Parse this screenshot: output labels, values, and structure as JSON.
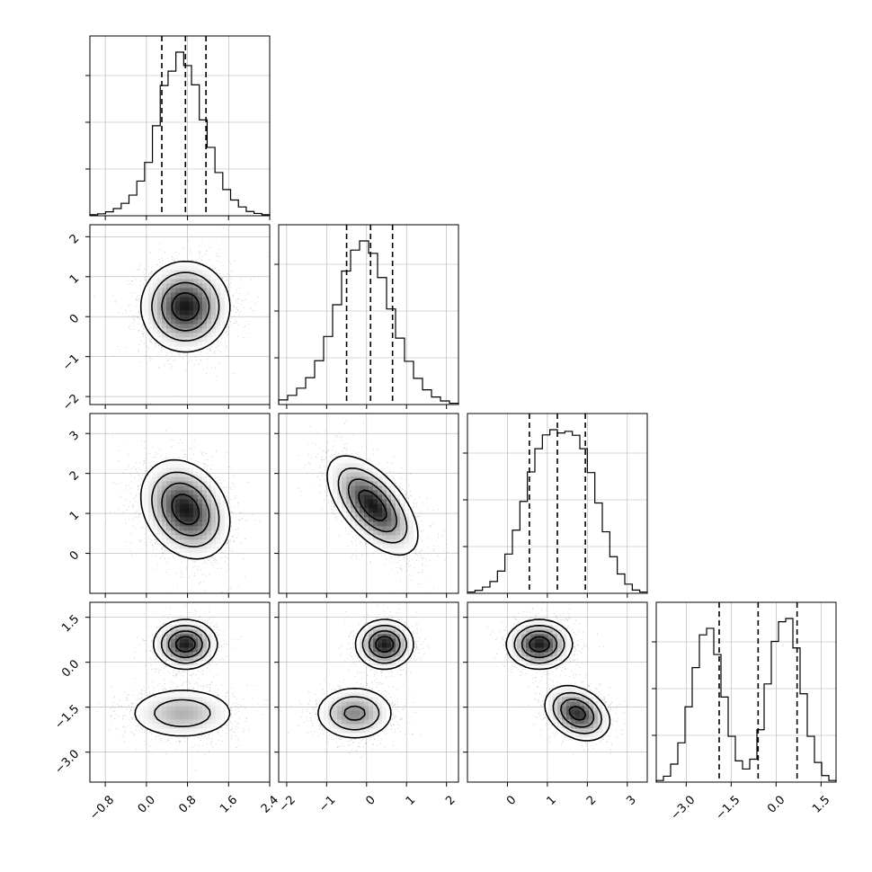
{
  "chart_data": {
    "type": "corner",
    "params": [
      {
        "index": 0,
        "range": [
          -1.1,
          2.4
        ],
        "ticks": [
          -0.8,
          0.0,
          0.8,
          1.6,
          2.4
        ],
        "tick_labels": [
          "−0.8",
          "0.0",
          "0.8",
          "1.6",
          "2.4"
        ],
        "quantiles": [
          0.3,
          0.76,
          1.16
        ],
        "hist": [
          0.3,
          0.6,
          1.2,
          2.2,
          3.8,
          6.3,
          10.6,
          16.3,
          27.5,
          39.8,
          44.2,
          50.0,
          45.9,
          40.0,
          29.3,
          20.9,
          13.2,
          8.0,
          4.8,
          2.7,
          1.3,
          0.7,
          0.3
        ]
      },
      {
        "index": 1,
        "range": [
          -2.2,
          2.3
        ],
        "ticks": [
          -2,
          -1,
          0,
          1,
          2
        ],
        "tick_labels": [
          "−2",
          "−1",
          "0",
          "1",
          "2"
        ],
        "quantiles": [
          -0.5,
          0.1,
          0.65
        ],
        "hist": [
          1.4,
          2.8,
          5.0,
          8.2,
          13.4,
          20.8,
          30.5,
          40.8,
          47.2,
          50.0,
          46.2,
          38.8,
          29.2,
          20.3,
          13.2,
          8.0,
          4.5,
          2.3,
          1.1,
          0.4
        ]
      },
      {
        "index": 2,
        "range": [
          -1.0,
          3.5
        ],
        "ticks": [
          0,
          1,
          2,
          3
        ],
        "tick_labels": [
          "0",
          "1",
          "2",
          "3"
        ],
        "quantiles": [
          0.55,
          1.25,
          1.95
        ],
        "hist": [
          0.4,
          0.9,
          1.9,
          3.6,
          6.8,
          12.0,
          19.3,
          28.1,
          37.1,
          44.2,
          48.4,
          50.0,
          49.0,
          49.5,
          48.3,
          44.2,
          36.9,
          27.6,
          18.8,
          11.2,
          5.9,
          2.8,
          1.0,
          0.4
        ]
      },
      {
        "index": 3,
        "range": [
          -4.0,
          2.0
        ],
        "ticks": [
          -3.0,
          -1.5,
          0.0,
          1.5
        ],
        "tick_labels": [
          "−3.0",
          "−1.5",
          "0.0",
          "1.5"
        ],
        "quantiles": [
          -1.9,
          -0.6,
          0.7
        ],
        "hist": [
          0.5,
          1.8,
          5.5,
          12.0,
          23.0,
          35.0,
          45.0,
          47.0,
          39.0,
          26.0,
          14.0,
          6.5,
          4.0,
          7.0,
          16.0,
          30.0,
          43.0,
          49.0,
          50.0,
          41.0,
          27.0,
          14.0,
          6.0,
          2.0,
          0.5
        ]
      }
    ],
    "pairs": [
      {
        "row": 1,
        "col": 0,
        "modes": [
          {
            "center": [
              0.76,
              0.25
            ],
            "sd": [
              0.42,
              0.55
            ],
            "rho": 0.0,
            "weight": 1.0
          }
        ]
      },
      {
        "row": 2,
        "col": 0,
        "modes": [
          {
            "center": [
              0.76,
              1.1
            ],
            "sd": [
              0.42,
              0.6
            ],
            "rho": -0.25,
            "weight": 1.0
          }
        ]
      },
      {
        "row": 2,
        "col": 1,
        "modes": [
          {
            "center": [
              0.15,
              1.2
            ],
            "sd": [
              0.55,
              0.6
            ],
            "rho": -0.6,
            "weight": 1.0
          }
        ]
      },
      {
        "row": 3,
        "col": 0,
        "modes": [
          {
            "center": [
              0.76,
              0.6
            ],
            "sd": [
              0.3,
              0.4
            ],
            "rho": 0.0,
            "weight": 0.5
          },
          {
            "center": [
              0.7,
              -1.7
            ],
            "sd": [
              0.55,
              0.45
            ],
            "rho": 0.0,
            "weight": 0.5
          }
        ]
      },
      {
        "row": 3,
        "col": 1,
        "modes": [
          {
            "center": [
              0.45,
              0.6
            ],
            "sd": [
              0.35,
              0.4
            ],
            "rho": 0.0,
            "weight": 0.5
          },
          {
            "center": [
              -0.3,
              -1.7
            ],
            "sd": [
              0.5,
              0.45
            ],
            "rho": 0.0,
            "weight": 0.5
          }
        ]
      },
      {
        "row": 3,
        "col": 2,
        "modes": [
          {
            "center": [
              0.8,
              0.6
            ],
            "sd": [
              0.4,
              0.4
            ],
            "rho": 0.0,
            "weight": 0.5
          },
          {
            "center": [
              1.75,
              -1.7
            ],
            "sd": [
              0.4,
              0.45
            ],
            "rho": -0.3,
            "weight": 0.5
          }
        ]
      }
    ],
    "hist_y_ticks": 3,
    "grid": true,
    "axis_labels": []
  },
  "colors": {
    "line": "#000000",
    "grid": "#b0b0b0",
    "scatter": "#9a9a9a",
    "contour_fill_light": "#ffffff",
    "density_dark": "#000000"
  }
}
